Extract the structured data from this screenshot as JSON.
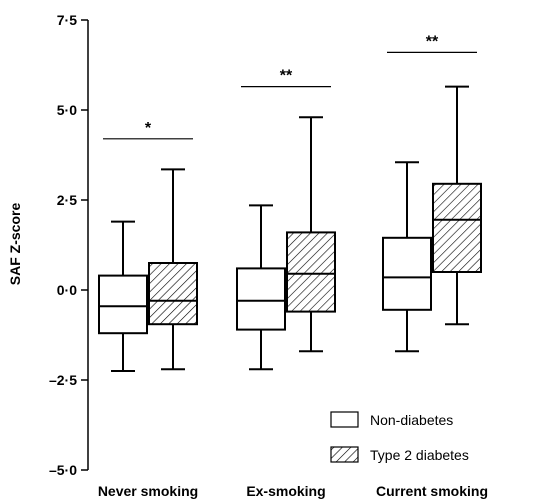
{
  "chart_data": {
    "type": "boxplot",
    "ylabel": "SAF Z-score",
    "ylim": [
      -5.0,
      7.5
    ],
    "yticks": [
      {
        "value": 7.5,
        "label": "7·5"
      },
      {
        "value": 5.0,
        "label": "5·0"
      },
      {
        "value": 2.5,
        "label": "2·5"
      },
      {
        "value": 0.0,
        "label": "0·0"
      },
      {
        "value": -2.5,
        "label": "–2·5"
      },
      {
        "value": -5.0,
        "label": "–5·0"
      }
    ],
    "categories": [
      "Never smoking",
      "Ex-smoking",
      "Current smoking"
    ],
    "legend": {
      "placement": "bottom-right",
      "items": [
        {
          "name": "Non-diabetes",
          "pattern": "none"
        },
        {
          "name": "Type 2 diabetes",
          "pattern": "hatch"
        }
      ]
    },
    "series": [
      {
        "name": "Non-diabetes",
        "boxes": [
          {
            "whisker_low": -2.25,
            "q1": -1.2,
            "median": -0.45,
            "q3": 0.4,
            "whisker_high": 1.9
          },
          {
            "whisker_low": -2.2,
            "q1": -1.1,
            "median": -0.3,
            "q3": 0.6,
            "whisker_high": 2.35
          },
          {
            "whisker_low": -1.7,
            "q1": -0.55,
            "median": 0.35,
            "q3": 1.45,
            "whisker_high": 3.55
          }
        ]
      },
      {
        "name": "Type 2 diabetes",
        "boxes": [
          {
            "whisker_low": -2.2,
            "q1": -0.95,
            "median": -0.3,
            "q3": 0.75,
            "whisker_high": 3.35
          },
          {
            "whisker_low": -1.7,
            "q1": -0.6,
            "median": 0.45,
            "q3": 1.6,
            "whisker_high": 4.8
          },
          {
            "whisker_low": -0.95,
            "q1": 0.5,
            "median": 1.95,
            "q3": 2.95,
            "whisker_high": 5.65
          }
        ]
      }
    ],
    "significance": [
      {
        "category": "Never smoking",
        "label": "*",
        "y": 4.2
      },
      {
        "category": "Ex-smoking",
        "label": "**",
        "y": 5.65
      },
      {
        "category": "Current smoking",
        "label": "**",
        "y": 6.6
      }
    ]
  }
}
